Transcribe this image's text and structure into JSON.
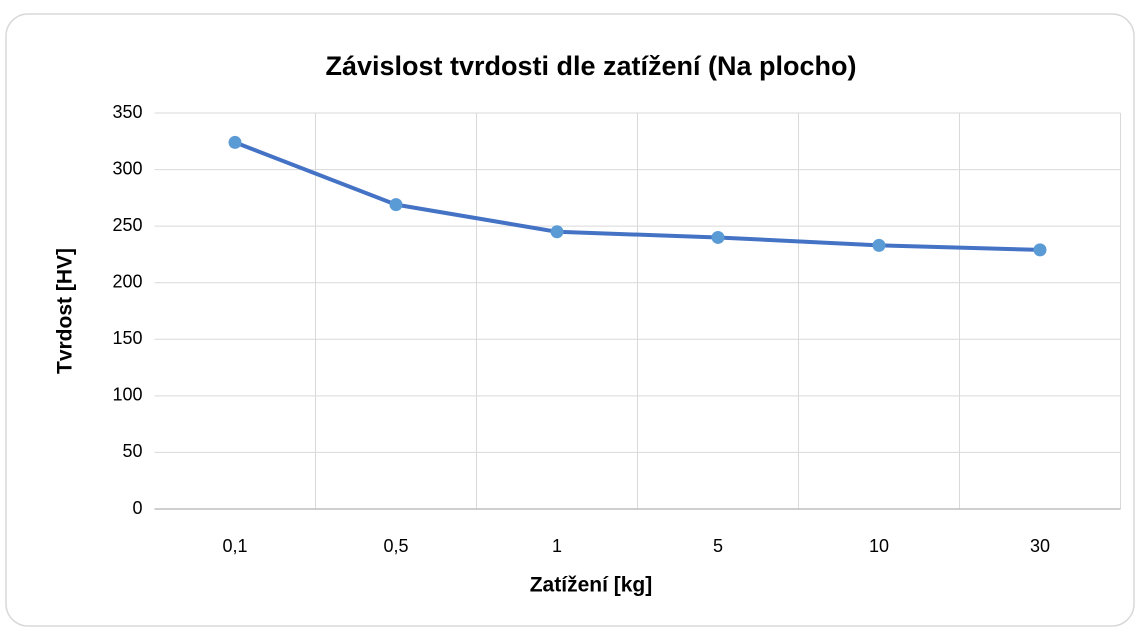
{
  "chart_data": {
    "type": "line",
    "title": "Závislost tvrdosti dle zatížení (Na plocho)",
    "x_label": "Zatížení [kg]",
    "y_label": "Tvrdost [HV]",
    "categories": [
      "0,1",
      "0,5",
      "1",
      "5",
      "10",
      "30"
    ],
    "values": [
      324,
      269,
      245,
      240,
      233,
      229
    ],
    "color": "#4472c4",
    "marker_color": "#5b9bd5",
    "ylim": [
      0,
      350
    ],
    "yticks": [
      0,
      50,
      100,
      150,
      200,
      250,
      300,
      350
    ],
    "grid": true
  }
}
